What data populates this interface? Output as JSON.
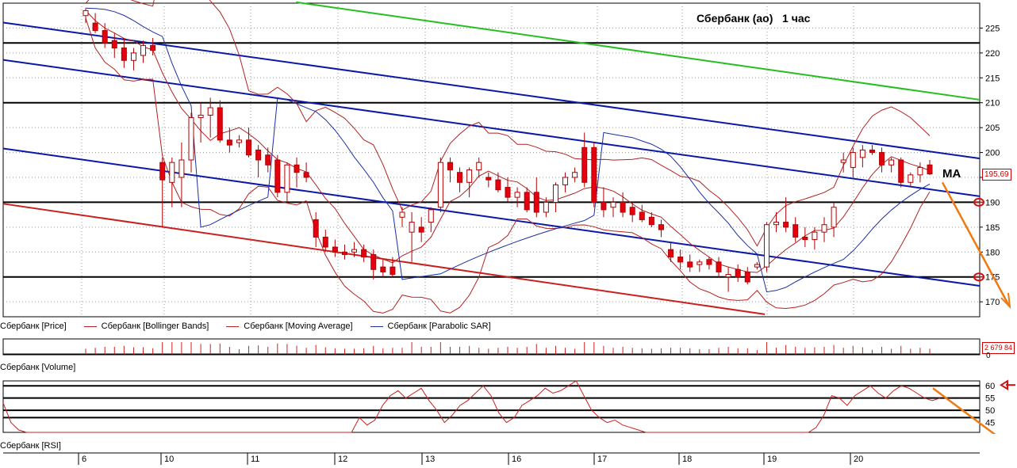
{
  "colors": {
    "candle_up": "#ffffff",
    "candle_down": "#e4000f",
    "bollinger": "#b22222",
    "moving_average": "#b22222",
    "parabolic_sar": "#1a2fa0",
    "channel_blue": "#0a18a8",
    "support_red": "#c8201e",
    "resistance_green": "#22c01e",
    "level_black": "#000000",
    "arrow_orange": "#f07a12",
    "volume": "#d22020",
    "rsi": "#c8201e"
  },
  "chart_data": [
    {
      "type": "candlestick",
      "title": "Сбербанк (ао)   1 час",
      "annotation": "MA",
      "last_price_label": "195,69",
      "y_ticks": [
        "225",
        "220",
        "215",
        "210",
        "205",
        "200",
        "195",
        "190",
        "185",
        "180",
        "175",
        "170"
      ],
      "ylim": [
        167,
        230
      ],
      "x_day_labels": [
        "6",
        "10",
        "11",
        "12",
        "13",
        "16",
        "17",
        "18",
        "19",
        "20"
      ],
      "horizontal_levels": [
        222,
        210,
        190,
        175
      ],
      "marked_levels": [
        190,
        175
      ],
      "candles": [
        {
          "o": 227.5,
          "h": 229,
          "l": 226,
          "c": 228.5
        },
        {
          "o": 226,
          "h": 228,
          "l": 224,
          "c": 224.5
        },
        {
          "o": 224.5,
          "h": 226,
          "l": 221,
          "c": 222
        },
        {
          "o": 222.5,
          "h": 224,
          "l": 219,
          "c": 221
        },
        {
          "o": 221,
          "h": 223,
          "l": 217,
          "c": 218.5
        },
        {
          "o": 218.5,
          "h": 221,
          "l": 216.5,
          "c": 220
        },
        {
          "o": 219.5,
          "h": 222.5,
          "l": 218,
          "c": 221.5
        },
        {
          "o": 221.5,
          "h": 223,
          "l": 219.5,
          "c": 220.5
        },
        {
          "o": 198,
          "h": 199,
          "l": 185,
          "c": 194.5
        },
        {
          "o": 194,
          "h": 199,
          "l": 189,
          "c": 198
        },
        {
          "o": 195,
          "h": 202,
          "l": 189,
          "c": 198.5
        },
        {
          "o": 198.5,
          "h": 208,
          "l": 196,
          "c": 207
        },
        {
          "o": 207,
          "h": 210,
          "l": 202,
          "c": 207.5
        },
        {
          "o": 207.5,
          "h": 211,
          "l": 203,
          "c": 209
        },
        {
          "o": 209,
          "h": 210.5,
          "l": 202,
          "c": 202.5
        },
        {
          "o": 202.5,
          "h": 205,
          "l": 200,
          "c": 201.5
        },
        {
          "o": 202,
          "h": 203.5,
          "l": 201,
          "c": 202.5
        },
        {
          "o": 202.5,
          "h": 205,
          "l": 199,
          "c": 199.5
        },
        {
          "o": 200.5,
          "h": 201.5,
          "l": 195,
          "c": 198.5
        },
        {
          "o": 199.5,
          "h": 201,
          "l": 196,
          "c": 197.5
        },
        {
          "o": 198.5,
          "h": 199.5,
          "l": 191,
          "c": 192
        },
        {
          "o": 192,
          "h": 198,
          "l": 190,
          "c": 197.5
        },
        {
          "o": 197.5,
          "h": 199,
          "l": 193,
          "c": 196
        },
        {
          "o": 196,
          "h": 198,
          "l": 194,
          "c": 195
        },
        {
          "o": 186.5,
          "h": 188,
          "l": 181,
          "c": 183
        },
        {
          "o": 183,
          "h": 184.5,
          "l": 180,
          "c": 181
        },
        {
          "o": 181,
          "h": 182.5,
          "l": 179,
          "c": 180
        },
        {
          "o": 180,
          "h": 181.5,
          "l": 178.5,
          "c": 179.5
        },
        {
          "o": 180,
          "h": 182,
          "l": 179,
          "c": 180.5
        },
        {
          "o": 180.5,
          "h": 181.5,
          "l": 178,
          "c": 179
        },
        {
          "o": 179.5,
          "h": 180.5,
          "l": 174.5,
          "c": 176.5
        },
        {
          "o": 177,
          "h": 178.5,
          "l": 175,
          "c": 176
        },
        {
          "o": 177,
          "h": 179,
          "l": 175,
          "c": 175.5
        },
        {
          "o": 187,
          "h": 189,
          "l": 185,
          "c": 188
        },
        {
          "o": 184,
          "h": 188,
          "l": 178,
          "c": 186
        },
        {
          "o": 185,
          "h": 187,
          "l": 182,
          "c": 184
        },
        {
          "o": 186,
          "h": 189,
          "l": 184,
          "c": 188.5
        },
        {
          "o": 189,
          "h": 199,
          "l": 188,
          "c": 198
        },
        {
          "o": 198,
          "h": 199,
          "l": 194,
          "c": 196.5
        },
        {
          "o": 196,
          "h": 197,
          "l": 192,
          "c": 194
        },
        {
          "o": 194,
          "h": 197,
          "l": 191,
          "c": 196.5
        },
        {
          "o": 196.5,
          "h": 199,
          "l": 195,
          "c": 198
        },
        {
          "o": 195,
          "h": 196,
          "l": 193,
          "c": 194.5
        },
        {
          "o": 194.5,
          "h": 196,
          "l": 192,
          "c": 192.5
        },
        {
          "o": 193,
          "h": 195,
          "l": 190,
          "c": 191
        },
        {
          "o": 191,
          "h": 193,
          "l": 189,
          "c": 192
        },
        {
          "o": 192,
          "h": 193,
          "l": 188,
          "c": 188.5
        },
        {
          "o": 192,
          "h": 195,
          "l": 187,
          "c": 188
        },
        {
          "o": 188,
          "h": 191,
          "l": 187,
          "c": 190
        },
        {
          "o": 190,
          "h": 194,
          "l": 188,
          "c": 193.5
        },
        {
          "o": 193.5,
          "h": 196,
          "l": 192,
          "c": 195
        },
        {
          "o": 195,
          "h": 197,
          "l": 194,
          "c": 196
        },
        {
          "o": 201,
          "h": 204,
          "l": 193,
          "c": 194
        },
        {
          "o": 201,
          "h": 202,
          "l": 189,
          "c": 190
        },
        {
          "o": 190,
          "h": 193,
          "l": 187,
          "c": 188.5
        },
        {
          "o": 189,
          "h": 191,
          "l": 187,
          "c": 190
        },
        {
          "o": 190,
          "h": 192,
          "l": 187,
          "c": 188
        },
        {
          "o": 189,
          "h": 190,
          "l": 186,
          "c": 187.5
        },
        {
          "o": 188,
          "h": 189.5,
          "l": 186,
          "c": 186.5
        },
        {
          "o": 187,
          "h": 188,
          "l": 185,
          "c": 185.5
        },
        {
          "o": 185.5,
          "h": 186.5,
          "l": 183,
          "c": 184.5
        },
        {
          "o": 180.5,
          "h": 182,
          "l": 178,
          "c": 179
        },
        {
          "o": 179,
          "h": 180.5,
          "l": 176.5,
          "c": 178
        },
        {
          "o": 178,
          "h": 179.5,
          "l": 176,
          "c": 177
        },
        {
          "o": 177.5,
          "h": 178.5,
          "l": 176,
          "c": 178
        },
        {
          "o": 178.5,
          "h": 179,
          "l": 176.5,
          "c": 177.5
        },
        {
          "o": 178,
          "h": 179,
          "l": 175,
          "c": 176
        },
        {
          "o": 175,
          "h": 177,
          "l": 172,
          "c": 175.5
        },
        {
          "o": 176.5,
          "h": 177.5,
          "l": 174,
          "c": 175
        },
        {
          "o": 176,
          "h": 177,
          "l": 173.5,
          "c": 174
        },
        {
          "o": 177,
          "h": 178,
          "l": 176.5,
          "c": 177.5
        },
        {
          "o": 177,
          "h": 186,
          "l": 176,
          "c": 185.5
        },
        {
          "o": 185.5,
          "h": 188,
          "l": 184,
          "c": 186
        },
        {
          "o": 186,
          "h": 191,
          "l": 184,
          "c": 185
        },
        {
          "o": 185.5,
          "h": 187,
          "l": 182,
          "c": 183
        },
        {
          "o": 183,
          "h": 185,
          "l": 181,
          "c": 182.5
        },
        {
          "o": 182.5,
          "h": 185,
          "l": 180.5,
          "c": 184
        },
        {
          "o": 184,
          "h": 187,
          "l": 182,
          "c": 185.5
        },
        {
          "o": 185,
          "h": 190,
          "l": 183,
          "c": 189
        },
        {
          "o": 198,
          "h": 200,
          "l": 196,
          "c": 198.5
        },
        {
          "o": 197,
          "h": 201,
          "l": 195,
          "c": 200
        },
        {
          "o": 199,
          "h": 201.5,
          "l": 197,
          "c": 200.5
        },
        {
          "o": 200.5,
          "h": 201.5,
          "l": 199.5,
          "c": 200
        },
        {
          "o": 200,
          "h": 201,
          "l": 196,
          "c": 197.5
        },
        {
          "o": 197.5,
          "h": 199,
          "l": 196,
          "c": 198.5
        },
        {
          "o": 198.5,
          "h": 199,
          "l": 193,
          "c": 194
        },
        {
          "o": 194,
          "h": 196,
          "l": 193,
          "c": 195.5
        },
        {
          "o": 195.5,
          "h": 198,
          "l": 194,
          "c": 197
        },
        {
          "o": 197.5,
          "h": 198.5,
          "l": 195.5,
          "c": 195.69
        }
      ],
      "legend": [
        "Сбербанк [Price]",
        "Сбербанк [Bollinger Bands]",
        "Сбербанк [Moving Average]",
        "Сбербанк [Parabolic SAR]"
      ]
    },
    {
      "type": "bar",
      "pane": "Сбербанк [Volume]",
      "last_value_label": "2 679 84",
      "y_ticks": [
        "0"
      ]
    },
    {
      "type": "line",
      "pane": "Сбербанк [RSI]",
      "y_ticks": [
        "60",
        "55",
        "50",
        "45"
      ],
      "ylim": [
        41,
        62
      ],
      "levels": [
        60,
        55,
        50,
        47
      ],
      "values": [
        53,
        45,
        42,
        41,
        41,
        41,
        41,
        41,
        41,
        41,
        41,
        41,
        41,
        41,
        41,
        41,
        41,
        41,
        41,
        41,
        41,
        41,
        41,
        41,
        41,
        41,
        41,
        41,
        41,
        41,
        41,
        41,
        41,
        41,
        41,
        41,
        41,
        41,
        41,
        41,
        41,
        41,
        41,
        41,
        41,
        41,
        47,
        44,
        46,
        52,
        56,
        58,
        55,
        57,
        59,
        54,
        50,
        45,
        48,
        52,
        54,
        57,
        60,
        56,
        49,
        45,
        47,
        52,
        54,
        56,
        59,
        57,
        58,
        60,
        62,
        56,
        50,
        47,
        45,
        46,
        44,
        43,
        42,
        41,
        41,
        41,
        41,
        41,
        41,
        41,
        41,
        41,
        41,
        41,
        41,
        41,
        41,
        41,
        41,
        41,
        41,
        41,
        41,
        41,
        41,
        43,
        48,
        56,
        55,
        52,
        56,
        58,
        60,
        57,
        55,
        58,
        60,
        59,
        57,
        55,
        54,
        55
      ]
    }
  ]
}
